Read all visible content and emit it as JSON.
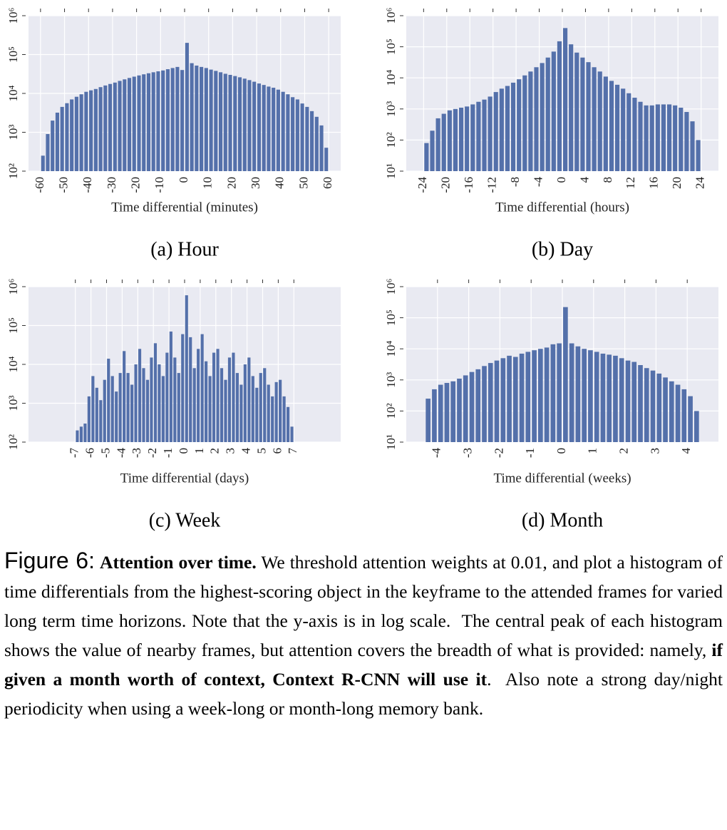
{
  "chart_data": [
    {
      "type": "histogram",
      "caption": "(a) Hour",
      "x_label": "Time differential (minutes)",
      "color": "#5470aa",
      "log_y": true,
      "grid": true,
      "bins": [
        -60,
        -58,
        -56,
        -54,
        -52,
        -50,
        -48,
        -46,
        -44,
        -42,
        -40,
        -38,
        -36,
        -34,
        -32,
        -30,
        -28,
        -26,
        -24,
        -22,
        -20,
        -18,
        -16,
        -14,
        -12,
        -10,
        -8,
        -6,
        -4,
        -2,
        0,
        2,
        4,
        6,
        8,
        10,
        12,
        14,
        16,
        18,
        20,
        22,
        24,
        26,
        28,
        30,
        32,
        34,
        36,
        38,
        40,
        42,
        44,
        46,
        48,
        50,
        52,
        54,
        56,
        58,
        60
      ],
      "values": [
        250,
        900,
        2000,
        3200,
        4500,
        5600,
        7000,
        8200,
        9500,
        11000,
        12000,
        13000,
        14500,
        16000,
        17500,
        19000,
        21000,
        23000,
        25000,
        27000,
        29000,
        31000,
        33000,
        35000,
        37000,
        39000,
        42000,
        45000,
        48000,
        40000,
        200000,
        60000,
        52000,
        48000,
        45000,
        41000,
        38000,
        35000,
        32000,
        30000,
        28000,
        26000,
        24000,
        22000,
        20000,
        18000,
        16500,
        15000,
        14000,
        12500,
        11000,
        9500,
        8000,
        7000,
        5500,
        4500,
        3500,
        2500,
        1500,
        400
      ],
      "xlim": [
        -65,
        65
      ],
      "xticks": [
        -60,
        -50,
        -40,
        -30,
        -20,
        -10,
        0,
        10,
        20,
        30,
        40,
        50,
        60
      ],
      "ylim": [
        100,
        1000000
      ],
      "yticks": [
        {
          "value": 100,
          "label": "10²"
        },
        {
          "value": 1000,
          "label": "10³"
        },
        {
          "value": 10000,
          "label": "10⁴"
        },
        {
          "value": 100000,
          "label": "10⁵"
        },
        {
          "value": 1000000,
          "label": "10⁶"
        }
      ]
    },
    {
      "type": "histogram",
      "caption": "(b) Day",
      "x_label": "Time differential (hours)",
      "color": "#5470aa",
      "log_y": true,
      "grid": true,
      "bins": [
        -24,
        -23,
        -22,
        -21,
        -20,
        -19,
        -18,
        -17,
        -16,
        -15,
        -14,
        -13,
        -12,
        -11,
        -10,
        -9,
        -8,
        -7,
        -6,
        -5,
        -4,
        -3,
        -2,
        -1,
        0,
        1,
        2,
        3,
        4,
        5,
        6,
        7,
        8,
        9,
        10,
        11,
        12,
        13,
        14,
        15,
        16,
        17,
        18,
        19,
        20,
        21,
        22,
        23,
        24
      ],
      "values": [
        80,
        200,
        500,
        700,
        900,
        1000,
        1100,
        1200,
        1400,
        1700,
        2000,
        2500,
        3500,
        4500,
        5500,
        7000,
        9000,
        12000,
        16000,
        22000,
        30000,
        45000,
        70000,
        150000,
        400000,
        120000,
        65000,
        45000,
        32000,
        22000,
        16000,
        11000,
        8000,
        6000,
        4500,
        3200,
        2300,
        1700,
        1300,
        1300,
        1400,
        1400,
        1400,
        1300,
        1100,
        800,
        400,
        100
      ],
      "xlim": [
        -27,
        27
      ],
      "xticks": [
        -24,
        -20,
        -16,
        -12,
        -8,
        -4,
        0,
        4,
        8,
        12,
        16,
        20,
        24
      ],
      "ylim": [
        10,
        1000000
      ],
      "yticks": [
        {
          "value": 10,
          "label": "10¹"
        },
        {
          "value": 100,
          "label": "10²"
        },
        {
          "value": 1000,
          "label": "10³"
        },
        {
          "value": 10000,
          "label": "10⁴"
        },
        {
          "value": 100000,
          "label": "10⁵"
        },
        {
          "value": 1000000,
          "label": "10⁶"
        }
      ]
    },
    {
      "type": "histogram",
      "caption": "(c) Week",
      "x_label": "Time differential (days)",
      "color": "#5470aa",
      "log_y": true,
      "grid": true,
      "bins": [
        -7,
        -6.75,
        -6.5,
        -6.25,
        -6,
        -5.75,
        -5.5,
        -5.25,
        -5,
        -4.75,
        -4.5,
        -4.25,
        -4,
        -3.75,
        -3.5,
        -3.25,
        -3,
        -2.75,
        -2.5,
        -2.25,
        -2,
        -1.75,
        -1.5,
        -1.25,
        -1,
        -0.75,
        -0.5,
        -0.25,
        0,
        0.25,
        0.5,
        0.75,
        1,
        1.25,
        1.5,
        1.75,
        2,
        2.25,
        2.5,
        2.75,
        3,
        3.25,
        3.5,
        3.75,
        4,
        4.25,
        4.5,
        4.75,
        5,
        5.25,
        5.5,
        5.75,
        6,
        6.25,
        6.5,
        6.75,
        7
      ],
      "values": [
        200,
        250,
        300,
        1500,
        5000,
        2500,
        1200,
        4000,
        14000,
        5000,
        2000,
        6000,
        22000,
        6000,
        3000,
        10000,
        25000,
        8000,
        4000,
        15000,
        35000,
        10000,
        5000,
        20000,
        70000,
        15000,
        6000,
        60000,
        600000,
        50000,
        8000,
        25000,
        60000,
        12000,
        5000,
        20000,
        25000,
        8000,
        4000,
        15000,
        20000,
        6000,
        3000,
        10000,
        15000,
        5000,
        2500,
        6000,
        8000,
        3000,
        1500,
        3500,
        4000,
        1500,
        800,
        250
      ],
      "xlim": [
        -10,
        10
      ],
      "xticks": [
        -7,
        -6,
        -5,
        -4,
        -3,
        -2,
        -1,
        0,
        1,
        2,
        3,
        4,
        5,
        6,
        7
      ],
      "ylim": [
        100,
        1000000
      ],
      "yticks": [
        {
          "value": 100,
          "label": "10²"
        },
        {
          "value": 1000,
          "label": "10³"
        },
        {
          "value": 10000,
          "label": "10⁴"
        },
        {
          "value": 100000,
          "label": "10⁵"
        },
        {
          "value": 1000000,
          "label": "10⁶"
        }
      ]
    },
    {
      "type": "histogram",
      "caption": "(d) Month",
      "x_label": "Time differential (weeks)",
      "color": "#5470aa",
      "log_y": true,
      "grid": true,
      "bins": [
        -4.4,
        -4.2,
        -4.0,
        -3.8,
        -3.6,
        -3.4,
        -3.2,
        -3.0,
        -2.8,
        -2.6,
        -2.4,
        -2.2,
        -2.0,
        -1.8,
        -1.6,
        -1.4,
        -1.2,
        -1.0,
        -0.8,
        -0.6,
        -0.4,
        -0.2,
        0.0,
        0.2,
        0.4,
        0.6,
        0.8,
        1.0,
        1.2,
        1.4,
        1.6,
        1.8,
        2.0,
        2.2,
        2.4,
        2.6,
        2.8,
        3.0,
        3.2,
        3.4,
        3.6,
        3.8,
        4.0,
        4.2,
        4.4
      ],
      "values": [
        250,
        500,
        700,
        800,
        900,
        1100,
        1400,
        1800,
        2200,
        2800,
        3500,
        4200,
        5000,
        6000,
        5500,
        7000,
        8000,
        9000,
        10000,
        11000,
        14000,
        15000,
        220000,
        15000,
        12000,
        10000,
        9000,
        8000,
        7000,
        6500,
        6000,
        5000,
        4200,
        3800,
        3000,
        2400,
        2000,
        1600,
        1200,
        900,
        700,
        500,
        300,
        100
      ],
      "xlim": [
        -5,
        5
      ],
      "xticks": [
        -4,
        -3,
        -2,
        -1,
        0,
        1,
        2,
        3,
        4
      ],
      "ylim": [
        10,
        1000000
      ],
      "yticks": [
        {
          "value": 10,
          "label": "10¹"
        },
        {
          "value": 100,
          "label": "10²"
        },
        {
          "value": 1000,
          "label": "10³"
        },
        {
          "value": 10000,
          "label": "10⁴"
        },
        {
          "value": 100000,
          "label": "10⁵"
        },
        {
          "value": 1000000,
          "label": "10⁶"
        }
      ]
    }
  ],
  "figure_caption": {
    "label": "Figure 6:",
    "segments": [
      {
        "text": "Attention over time.",
        "bold": true
      },
      {
        "text": " We threshold attention weights at 0.01, and plot a histogram of time differentials from the highest-scoring object in the keyframe to the attended frames for varied long term time horizons. Note that the y-axis is in log scale.  The central peak of each histogram shows the value of nearby frames, but attention covers the breadth of what is provided: namely, ",
        "bold": false
      },
      {
        "text": "if given a month worth of context, Context R-CNN will use it",
        "bold": true
      },
      {
        "text": ".  Also note a strong day/night periodicity when using a week-long or month-long memory bank.",
        "bold": false
      }
    ]
  }
}
